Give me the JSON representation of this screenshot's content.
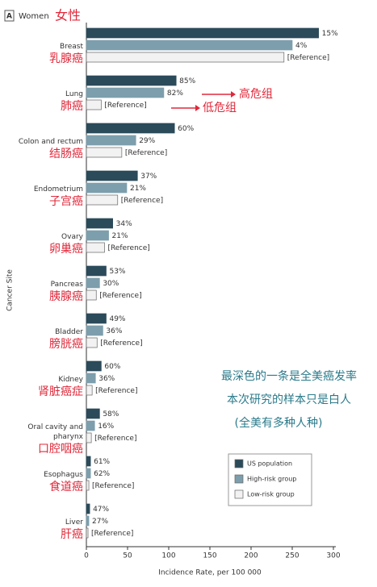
{
  "chart_data": {
    "type": "bar",
    "orientation": "horizontal",
    "panel": "A",
    "title": "Women",
    "title_zh": "女性",
    "categories": [
      "Breast",
      "Lung",
      "Colon and rectum",
      "Endometrium",
      "Ovary",
      "Pancreas",
      "Bladder",
      "Kidney",
      "Oral cavity and pharynx",
      "Esophagus",
      "Liver"
    ],
    "categories_zh": [
      "乳腺癌",
      "肺癌",
      "结肠癌",
      "子宫癌",
      "卵巢癌",
      "胰腺癌",
      "膀胱癌",
      "肾脏癌症",
      "口腔咽癌",
      "食道癌",
      "肝癌"
    ],
    "series": [
      {
        "name": "US population",
        "color": "#2b4a5a",
        "values": [
          282,
          109,
          107,
          62,
          32,
          24,
          24,
          18,
          16,
          5,
          4
        ],
        "bar_labels": [
          "15%",
          "85%",
          "60%",
          "37%",
          "34%",
          "53%",
          "49%",
          "60%",
          "58%",
          "61%",
          "47%"
        ]
      },
      {
        "name": "High-risk group",
        "color": "#7d9eac",
        "values": [
          250,
          94,
          60,
          49,
          27,
          16,
          20,
          11,
          10,
          5,
          3
        ],
        "bar_labels": [
          "4%",
          "82%",
          "29%",
          "21%",
          "21%",
          "30%",
          "36%",
          "36%",
          "16%",
          "62%",
          "27%"
        ]
      },
      {
        "name": "Low-risk group",
        "color": "#f2f2f2",
        "values": [
          240,
          18,
          43,
          38,
          22,
          12,
          13,
          7,
          6,
          3,
          2
        ],
        "bar_labels": [
          "[Reference]",
          "[Reference]",
          "[Reference]",
          "[Reference]",
          "[Reference]",
          "[Reference]",
          "[Reference]",
          "[Reference]",
          "[Reference]",
          "[Reference]",
          "[Reference]"
        ]
      }
    ],
    "xlim": [
      0,
      300
    ],
    "xticks": [
      0,
      50,
      100,
      150,
      200,
      250,
      300
    ],
    "x_label": "Incidence Rate, per 100 000",
    "y_label": "Cancer Site",
    "grid": false,
    "legend": "lower right",
    "annotations": {
      "high_risk": "高危组",
      "low_risk": "低危组",
      "note": [
        "最深色的一条是全美癌发率",
        "本次研究的样本只是白人",
        "(全美有多种人种)"
      ]
    }
  }
}
